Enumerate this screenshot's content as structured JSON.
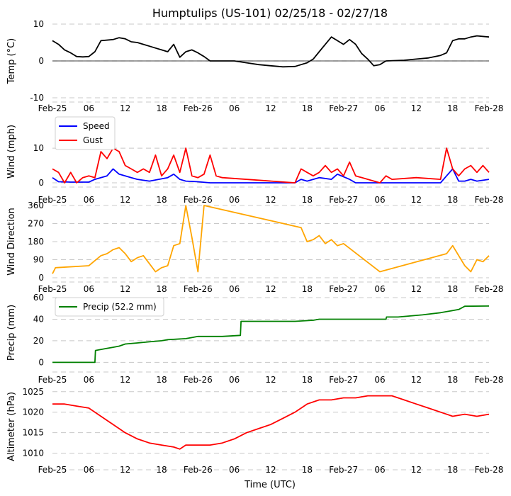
{
  "title": "Humptulips (US-101) 02/25/18 - 02/27/18",
  "xlabel": "Time (UTC)",
  "x_ticks": [
    {
      "hour": 0,
      "label": "Feb-25"
    },
    {
      "hour": 6,
      "label": "06"
    },
    {
      "hour": 12,
      "label": "12"
    },
    {
      "hour": 18,
      "label": "18"
    },
    {
      "hour": 24,
      "label": "Feb-26"
    },
    {
      "hour": 30,
      "label": "06"
    },
    {
      "hour": 36,
      "label": "12"
    },
    {
      "hour": 42,
      "label": "18"
    },
    {
      "hour": 48,
      "label": "Feb-27"
    },
    {
      "hour": 54,
      "label": "06"
    },
    {
      "hour": 60,
      "label": "12"
    },
    {
      "hour": 66,
      "label": "18"
    },
    {
      "hour": 72,
      "label": "Feb-28"
    }
  ],
  "colors": {
    "temp": "#000000",
    "speed": "#0000ff",
    "gust": "#ff0000",
    "dir": "#ffa500",
    "precip": "#008000",
    "alt": "#ff0000"
  },
  "chart_data": [
    {
      "type": "line",
      "id": "temp",
      "ylabel": "Temp ($^\\circ$C)",
      "ylabel_display": "Temp (°C)",
      "ylim": [
        -10,
        10
      ],
      "yticks": [
        -10,
        0,
        10
      ],
      "zero_line": true,
      "series": [
        {
          "name": "Temp",
          "color": "#000000",
          "points": [
            [
              0,
              5.5
            ],
            [
              1,
              4.5
            ],
            [
              2,
              3
            ],
            [
              3,
              2.2
            ],
            [
              4,
              1.2
            ],
            [
              5,
              1.1
            ],
            [
              6,
              1.2
            ],
            [
              7,
              2.5
            ],
            [
              8,
              5.5
            ],
            [
              10,
              5.8
            ],
            [
              11,
              6.3
            ],
            [
              12,
              6
            ],
            [
              13,
              5.2
            ],
            [
              14,
              5
            ],
            [
              15,
              4.5
            ],
            [
              16,
              4
            ],
            [
              17,
              3.5
            ],
            [
              18,
              3
            ],
            [
              19,
              2.5
            ],
            [
              20,
              4.5
            ],
            [
              21,
              1
            ],
            [
              22,
              2.5
            ],
            [
              23,
              3
            ],
            [
              24,
              2.2
            ],
            [
              25,
              1.2
            ],
            [
              26,
              0
            ],
            [
              30,
              0
            ],
            [
              32,
              -0.5
            ],
            [
              34,
              -1
            ],
            [
              36,
              -1.3
            ],
            [
              38,
              -1.6
            ],
            [
              40,
              -1.5
            ],
            [
              42,
              -0.5
            ],
            [
              43,
              0.5
            ],
            [
              44,
              2.5
            ],
            [
              45,
              4.5
            ],
            [
              46,
              6.5
            ],
            [
              47,
              5.5
            ],
            [
              48,
              4.5
            ],
            [
              49,
              5.8
            ],
            [
              50,
              4.5
            ],
            [
              51,
              2
            ],
            [
              52,
              0.5
            ],
            [
              53,
              -1.3
            ],
            [
              54,
              -1
            ],
            [
              55,
              0
            ],
            [
              58,
              0.2
            ],
            [
              60,
              0.5
            ],
            [
              62,
              0.8
            ],
            [
              64,
              1.5
            ],
            [
              65,
              2.2
            ],
            [
              66,
              5.5
            ],
            [
              67,
              6
            ],
            [
              68,
              6
            ],
            [
              69,
              6.5
            ],
            [
              70,
              6.8
            ],
            [
              72,
              6.5
            ]
          ]
        }
      ]
    },
    {
      "type": "line",
      "id": "wind",
      "ylabel": "Wind (mph)",
      "ylim": [
        0,
        18
      ],
      "yticks": [
        0,
        10
      ],
      "legend": [
        "Speed",
        "Gust"
      ],
      "series": [
        {
          "name": "Speed",
          "color": "#0000ff",
          "points": [
            [
              0,
              1.5
            ],
            [
              1,
              0.3
            ],
            [
              3,
              0.2
            ],
            [
              6,
              0.2
            ],
            [
              7,
              1
            ],
            [
              9,
              2
            ],
            [
              10,
              4
            ],
            [
              11,
              2.5
            ],
            [
              12,
              2
            ],
            [
              13,
              1.5
            ],
            [
              14,
              1
            ],
            [
              16,
              0.5
            ],
            [
              19,
              1.5
            ],
            [
              20,
              2.5
            ],
            [
              21,
              1
            ],
            [
              22,
              0.5
            ],
            [
              24,
              0.3
            ],
            [
              26,
              0
            ],
            [
              40,
              0
            ],
            [
              41,
              1
            ],
            [
              42,
              0.5
            ],
            [
              44,
              1.5
            ],
            [
              46,
              1
            ],
            [
              47,
              2.5
            ],
            [
              49,
              1
            ],
            [
              50,
              0
            ],
            [
              64,
              0
            ],
            [
              65,
              2
            ],
            [
              66,
              4
            ],
            [
              67,
              0.5
            ],
            [
              68,
              0.5
            ],
            [
              69,
              1
            ],
            [
              70,
              0.5
            ],
            [
              72,
              1
            ]
          ]
        },
        {
          "name": "Gust",
          "color": "#ff0000",
          "points": [
            [
              0,
              4
            ],
            [
              1,
              3
            ],
            [
              2,
              0
            ],
            [
              3,
              3
            ],
            [
              4,
              0
            ],
            [
              5,
              1.5
            ],
            [
              6,
              2
            ],
            [
              7,
              1.5
            ],
            [
              8,
              9
            ],
            [
              9,
              7
            ],
            [
              10,
              10
            ],
            [
              11,
              9
            ],
            [
              12,
              5
            ],
            [
              13,
              4
            ],
            [
              14,
              3
            ],
            [
              15,
              4
            ],
            [
              16,
              3
            ],
            [
              17,
              8
            ],
            [
              18,
              2
            ],
            [
              19,
              4
            ],
            [
              20,
              8
            ],
            [
              21,
              3
            ],
            [
              22,
              10
            ],
            [
              23,
              2
            ],
            [
              24,
              1.5
            ],
            [
              25,
              2.5
            ],
            [
              26,
              8
            ],
            [
              27,
              2
            ],
            [
              28,
              1.5
            ],
            [
              40,
              0
            ],
            [
              41,
              4
            ],
            [
              42,
              3
            ],
            [
              43,
              2
            ],
            [
              44,
              3
            ],
            [
              45,
              5
            ],
            [
              46,
              3
            ],
            [
              47,
              4
            ],
            [
              48,
              2
            ],
            [
              49,
              6
            ],
            [
              50,
              2
            ],
            [
              54,
              0
            ],
            [
              55,
              2
            ],
            [
              56,
              1
            ],
            [
              60,
              1.5
            ],
            [
              64,
              1
            ],
            [
              65,
              10
            ],
            [
              66,
              4
            ],
            [
              67,
              2
            ],
            [
              68,
              4
            ],
            [
              69,
              5
            ],
            [
              70,
              3
            ],
            [
              71,
              5
            ],
            [
              72,
              3
            ]
          ]
        }
      ]
    },
    {
      "type": "line",
      "id": "dir",
      "ylabel": "Wind Direction",
      "ylim": [
        0,
        360
      ],
      "yticks": [
        0,
        90,
        180,
        270,
        360
      ],
      "series": [
        {
          "name": "Direction",
          "color": "#ffa500",
          "points": [
            [
              0,
              20
            ],
            [
              0.5,
              50
            ],
            [
              6,
              60
            ],
            [
              8,
              110
            ],
            [
              9,
              120
            ],
            [
              10,
              140
            ],
            [
              11,
              150
            ],
            [
              12,
              120
            ],
            [
              13,
              80
            ],
            [
              14,
              100
            ],
            [
              15,
              110
            ],
            [
              17,
              30
            ],
            [
              18,
              50
            ],
            [
              19,
              60
            ],
            [
              20,
              160
            ],
            [
              21,
              170
            ],
            [
              22,
              360
            ],
            [
              23,
              200
            ],
            [
              24,
              30
            ],
            [
              25,
              360
            ],
            [
              41,
              250
            ],
            [
              42,
              180
            ],
            [
              43,
              190
            ],
            [
              44,
              210
            ],
            [
              45,
              170
            ],
            [
              46,
              190
            ],
            [
              47,
              160
            ],
            [
              48,
              170
            ],
            [
              54,
              30
            ],
            [
              65,
              120
            ],
            [
              66,
              160
            ],
            [
              68,
              60
            ],
            [
              69,
              30
            ],
            [
              70,
              90
            ],
            [
              71,
              80
            ],
            [
              72,
              110
            ]
          ]
        }
      ]
    },
    {
      "type": "line",
      "id": "precip",
      "ylabel": "Precip (mm)",
      "ylim": [
        -5,
        60
      ],
      "yticks": [
        0,
        20,
        40,
        60
      ],
      "legend": [
        "Precip (52.2 mm)"
      ],
      "series": [
        {
          "name": "Precip (52.2 mm)",
          "color": "#008000",
          "points": [
            [
              0,
              0
            ],
            [
              7,
              0
            ],
            [
              7.1,
              11
            ],
            [
              9,
              13
            ],
            [
              10,
              14
            ],
            [
              11,
              15
            ],
            [
              12,
              17
            ],
            [
              14,
              18
            ],
            [
              16,
              19
            ],
            [
              18,
              20
            ],
            [
              19,
              21
            ],
            [
              22,
              22
            ],
            [
              23,
              23
            ],
            [
              24,
              24
            ],
            [
              28,
              24
            ],
            [
              31,
              25
            ],
            [
              31.1,
              38
            ],
            [
              33,
              38
            ],
            [
              40,
              38
            ],
            [
              43,
              39
            ],
            [
              44,
              40
            ],
            [
              48,
              40
            ],
            [
              55,
              40
            ],
            [
              55.1,
              42
            ],
            [
              57,
              42
            ],
            [
              59,
              43
            ],
            [
              61,
              44
            ],
            [
              64,
              46
            ],
            [
              67,
              49
            ],
            [
              68,
              52
            ],
            [
              72,
              52.2
            ]
          ]
        }
      ]
    },
    {
      "type": "line",
      "id": "alt",
      "ylabel": "Altimeter (hPa)",
      "ylim": [
        1007,
        1026
      ],
      "yticks": [
        1010,
        1015,
        1020,
        1025
      ],
      "series": [
        {
          "name": "Altimeter",
          "color": "#ff0000",
          "points": [
            [
              0,
              1022
            ],
            [
              2,
              1022
            ],
            [
              4,
              1021.5
            ],
            [
              6,
              1021
            ],
            [
              8,
              1019
            ],
            [
              10,
              1017
            ],
            [
              12,
              1015
            ],
            [
              14,
              1013.5
            ],
            [
              16,
              1012.5
            ],
            [
              18,
              1012
            ],
            [
              20,
              1011.5
            ],
            [
              21,
              1011
            ],
            [
              22,
              1012
            ],
            [
              24,
              1012
            ],
            [
              26,
              1012
            ],
            [
              28,
              1012.5
            ],
            [
              30,
              1013.5
            ],
            [
              32,
              1015
            ],
            [
              34,
              1016
            ],
            [
              36,
              1017
            ],
            [
              38,
              1018.5
            ],
            [
              40,
              1020
            ],
            [
              42,
              1022
            ],
            [
              44,
              1023
            ],
            [
              46,
              1023
            ],
            [
              48,
              1023.5
            ],
            [
              50,
              1023.5
            ],
            [
              52,
              1024
            ],
            [
              54,
              1024
            ],
            [
              56,
              1024
            ],
            [
              58,
              1023
            ],
            [
              60,
              1022
            ],
            [
              62,
              1021
            ],
            [
              64,
              1020
            ],
            [
              66,
              1019
            ],
            [
              68,
              1019.5
            ],
            [
              70,
              1019
            ],
            [
              72,
              1019.5
            ]
          ]
        }
      ]
    }
  ]
}
